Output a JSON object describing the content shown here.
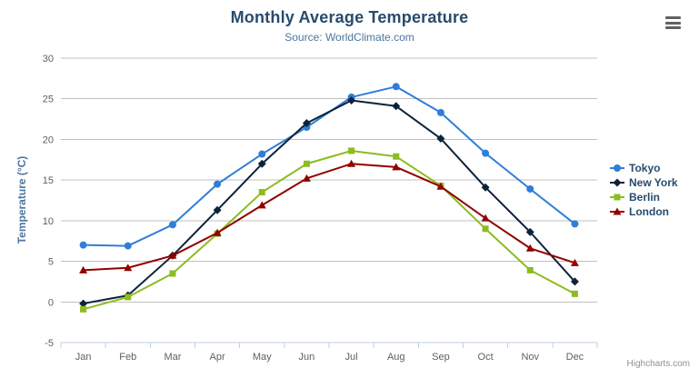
{
  "header": {
    "title": "Monthly Average Temperature",
    "subtitle": "Source: WorldClimate.com"
  },
  "credits": {
    "label": "Highcharts.com"
  },
  "icons": {
    "export_menu": "hamburger-menu-icon"
  },
  "colors": {
    "title": "#274b6d",
    "subtitle": "#4d759e",
    "axis_labels": "#606060",
    "axis_line": "#c0d0e0",
    "gridline": "#c0c0c0",
    "legend_text": "#274b6d",
    "credits_text": "#909090"
  },
  "chart_data": {
    "type": "line",
    "title": "Monthly Average Temperature",
    "subtitle": "Source: WorldClimate.com",
    "categories": [
      "Jan",
      "Feb",
      "Mar",
      "Apr",
      "May",
      "Jun",
      "Jul",
      "Aug",
      "Sep",
      "Oct",
      "Nov",
      "Dec"
    ],
    "series": [
      {
        "name": "Tokyo",
        "color": "#2f7ed8",
        "marker": "circle",
        "values": [
          7.0,
          6.9,
          9.5,
          14.5,
          18.2,
          21.5,
          25.2,
          26.5,
          23.3,
          18.3,
          13.9,
          9.6
        ]
      },
      {
        "name": "New York",
        "color": "#0d233a",
        "marker": "diamond",
        "values": [
          -0.2,
          0.8,
          5.7,
          11.3,
          17.0,
          22.0,
          24.8,
          24.1,
          20.1,
          14.1,
          8.6,
          2.5
        ]
      },
      {
        "name": "Berlin",
        "color": "#8bbc21",
        "marker": "square",
        "values": [
          -0.9,
          0.6,
          3.5,
          8.4,
          13.5,
          17.0,
          18.6,
          17.9,
          14.3,
          9.0,
          3.9,
          1.0
        ]
      },
      {
        "name": "London",
        "color": "#910000",
        "marker": "triangle",
        "values": [
          3.9,
          4.2,
          5.7,
          8.5,
          11.9,
          15.2,
          17.0,
          16.6,
          14.2,
          10.3,
          6.6,
          4.8
        ]
      }
    ],
    "xlabel": "",
    "ylabel": "Temperature (°C)",
    "ylim": [
      -5,
      30
    ],
    "ytick_step": 5,
    "yticks": [
      -5,
      0,
      5,
      10,
      15,
      20,
      25,
      30
    ],
    "grid": true,
    "legend_position": "right"
  }
}
